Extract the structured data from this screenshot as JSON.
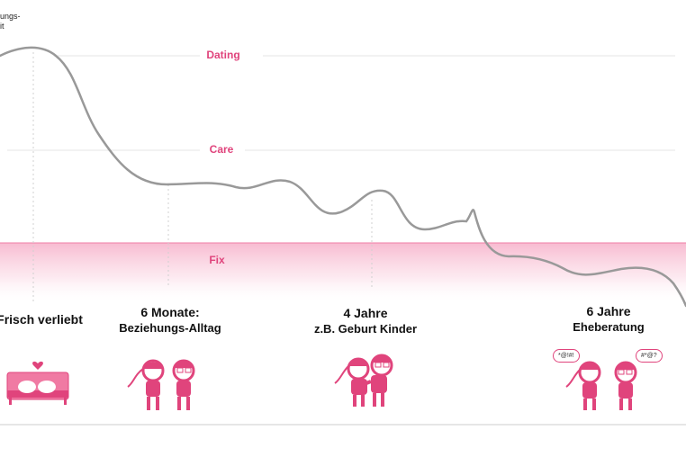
{
  "axis_title_line1": "ungs-",
  "axis_title_line2": "it",
  "zones": {
    "dating": "Dating",
    "care": "Care",
    "fix": "Fix"
  },
  "milestones": [
    {
      "line1": "Frisch verliebt",
      "line2": ""
    },
    {
      "line1": "6 Monate:",
      "line2": "Beziehungs-Alltag"
    },
    {
      "line1": "4 Jahre",
      "line2": "z.B. Geburt Kinder"
    },
    {
      "line1": "6 Jahre",
      "line2": "Eheberatung"
    }
  ],
  "bubbles": {
    "left": "*@!#!",
    "right": "#*@?"
  },
  "colors": {
    "accent": "#e0447c",
    "curve": "#999999",
    "grid": "#e6e6e6",
    "fix_band": "#f9c7d8"
  },
  "icons": [
    "couple-in-bed-icon",
    "couple-standing-icon",
    "couple-hugging-icon",
    "couple-arguing-icon"
  ]
}
